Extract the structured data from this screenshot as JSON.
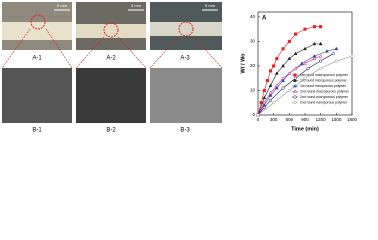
{
  "photos": {
    "top": [
      {
        "label": "A-1",
        "scale": "5 mm"
      },
      {
        "label": "A-2",
        "scale": "5 mm"
      },
      {
        "label": "A-3",
        "scale": "5 mm"
      }
    ],
    "bottom": [
      {
        "label": "B-1"
      },
      {
        "label": "B-2"
      },
      {
        "label": "B-3"
      }
    ]
  },
  "chart_data": {
    "type": "line",
    "panel": "A",
    "xlabel": "Time (min)",
    "ylabel": "Wt / Wo",
    "xlim": [
      0,
      1800
    ],
    "xticks": [
      0,
      300,
      600,
      900,
      1200,
      1500,
      1800
    ],
    "ylim": [
      0,
      42
    ],
    "yticks": [
      0,
      10,
      20,
      30,
      40
    ],
    "legend": "lower right",
    "series": [
      {
        "name": "1st round macroporous polymer",
        "color": "#e8211f",
        "marker": "square",
        "x": [
          0,
          60,
          120,
          180,
          240,
          300,
          360,
          480,
          600,
          720,
          900,
          1080,
          1200
        ],
        "values": [
          0,
          5,
          10,
          14,
          18,
          20,
          23,
          27,
          30,
          33,
          35,
          36,
          36
        ]
      },
      {
        "name": "1st round microporous polymer",
        "color": "#222222",
        "marker": "triangle",
        "x": [
          0,
          120,
          240,
          360,
          480,
          600,
          720,
          900,
          1080,
          1200
        ],
        "values": [
          0,
          7,
          12,
          17,
          20,
          23,
          25,
          27,
          29,
          29
        ]
      },
      {
        "name": "1st round nanoporous polymer",
        "color": "#2a3fb0",
        "marker": "triangle",
        "x": [
          0,
          120,
          240,
          360,
          480,
          600,
          840,
          1080,
          1320,
          1500
        ],
        "values": [
          0,
          4,
          8,
          11,
          14,
          17,
          21,
          24,
          26,
          27
        ]
      },
      {
        "name": "2nd round macroporous polymer",
        "color": "#c2189a",
        "marker": "triangle",
        "x": [
          0,
          120,
          240,
          360,
          480,
          600,
          720,
          900,
          1080,
          1200
        ],
        "values": [
          0,
          5,
          9,
          12,
          15,
          17,
          19,
          21,
          23,
          24
        ]
      },
      {
        "name": "2nd round microporous polymer",
        "color": "#1a1a5a",
        "marker": "circle",
        "x": [
          0,
          120,
          240,
          480,
          720,
          960,
          1200,
          1440
        ],
        "values": [
          0,
          3,
          6,
          11,
          15,
          19,
          22,
          25
        ]
      },
      {
        "name": "2nd round nanoporous polymer",
        "color": "#999999",
        "marker": "circle",
        "x": [
          0,
          300,
          600,
          900,
          1200,
          1500,
          1800
        ],
        "values": [
          0,
          5,
          10,
          15,
          19,
          22,
          24
        ]
      }
    ]
  }
}
